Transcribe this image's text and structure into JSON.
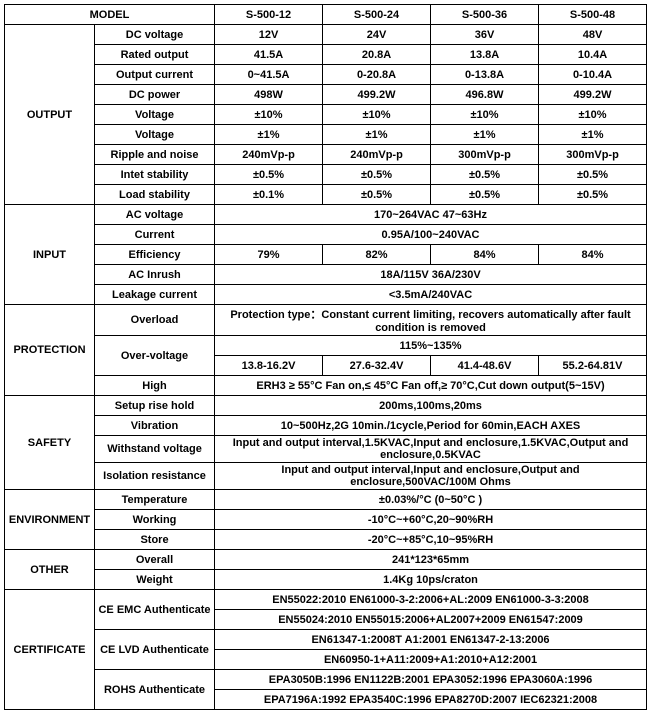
{
  "header": {
    "model_label": "MODEL",
    "models": [
      "S-500-12",
      "S-500-24",
      "S-500-36",
      "S-500-48"
    ]
  },
  "sections": {
    "output": {
      "title": "OUTPUT",
      "rows": [
        {
          "label": "DC  voltage",
          "vals": [
            "12V",
            "24V",
            "36V",
            "48V"
          ]
        },
        {
          "label": "Rated output",
          "vals": [
            "41.5A",
            "20.8A",
            "13.8A",
            "10.4A"
          ]
        },
        {
          "label": "Output current",
          "vals": [
            "0~41.5A",
            "0-20.8A",
            "0-13.8A",
            "0-10.4A"
          ]
        },
        {
          "label": "DC power",
          "vals": [
            "498W",
            "499.2W",
            "496.8W",
            "499.2W"
          ]
        },
        {
          "label": "Voltage",
          "vals": [
            "±10%",
            "±10%",
            "±10%",
            "±10%"
          ]
        },
        {
          "label": "Voltage",
          "vals": [
            "±1%",
            "±1%",
            "±1%",
            "±1%"
          ]
        },
        {
          "label": "Ripple and noise",
          "vals": [
            "240mVp-p",
            "240mVp-p",
            "300mVp-p",
            "300mVp-p"
          ]
        },
        {
          "label": "Intet stability",
          "vals": [
            "±0.5%",
            "±0.5%",
            "±0.5%",
            "±0.5%"
          ]
        },
        {
          "label": "Load stability",
          "vals": [
            "±0.1%",
            "±0.5%",
            "±0.5%",
            "±0.5%"
          ]
        }
      ]
    },
    "input": {
      "title": "INPUT",
      "rows": [
        {
          "label": "AC voltage",
          "span": "170~264VAC 47~63Hz"
        },
        {
          "label": "Current",
          "span": "0.95A/100~240VAC"
        },
        {
          "label": "Efficiency",
          "vals": [
            "79%",
            "82%",
            "84%",
            "84%"
          ]
        },
        {
          "label": "AC Inrush",
          "span": "18A/115V 36A/230V"
        },
        {
          "label": "Leakage current",
          "span": "<3.5mA/240VAC"
        }
      ]
    },
    "protection": {
      "title": "PROTECTION",
      "overload_label": "Overload",
      "overload_text": "Protection type：Constant current limiting, recovers automatically after fault condition is removed",
      "overvoltage_label": "Over-voltage",
      "overvoltage_span": "115%~135%",
      "overvoltage_vals": [
        "13.8-16.2V",
        "27.6-32.4V",
        "41.4-48.6V",
        "55.2-64.81V"
      ],
      "high_label": "High",
      "high_span": "ERH3 ≥ 55°C Fan on,≤ 45°C Fan off,≥ 70°C,Cut down output(5~15V)"
    },
    "safety": {
      "title": "SAFETY",
      "rows": [
        {
          "label": "Setup rise hold",
          "span": "200ms,100ms,20ms"
        },
        {
          "label": "Vibration",
          "span": "10~500Hz,2G 10min./1cycle,Period for 60min,EACH AXES"
        },
        {
          "label": "Withstand voltage",
          "span": "Input and output interval,1.5KVAC,Input and enclosure,1.5KVAC,Output and enclosure,0.5KVAC"
        },
        {
          "label": "Isolation resistance",
          "span": "Input and output interval,Input and enclosure,Output and enclosure,500VAC/100M Ohms"
        }
      ]
    },
    "environment": {
      "title": "ENVIRONMENT",
      "rows": [
        {
          "label": "Temperature",
          "span": "±0.03%/°C (0~50°C )"
        },
        {
          "label": "Working",
          "span": "-10°C~+60°C,20~90%RH"
        },
        {
          "label": "Store",
          "span": "-20°C~+85°C,10~95%RH"
        }
      ]
    },
    "other": {
      "title": "OTHER",
      "rows": [
        {
          "label": "Overall",
          "span": "241*123*65mm"
        },
        {
          "label": "Weight",
          "span": "1.4Kg 10ps/craton"
        }
      ]
    },
    "certificate": {
      "title": "CERTIFICATE",
      "ce_emc_label": "CE EMC Authenticate",
      "ce_emc_1": "EN55022:2010 EN61000-3-2:2006+AL:2009 EN61000-3-3:2008",
      "ce_emc_2": "EN55024:2010 EN55015:2006+AL2007+2009 EN61547:2009",
      "ce_lvd_label": "CE LVD Authenticate",
      "ce_lvd_1": "EN61347-1:2008T A1:2001 EN61347-2-13:2006",
      "ce_lvd_2": "EN60950-1+A11:2009+A1:2010+A12:2001",
      "rohs_label": "ROHS Authenticate",
      "rohs_1": "EPA3050B:1996 EN1122B:2001 EPA3052:1996 EPA3060A:1996",
      "rohs_2": "EPA7196A:1992 EPA3540C:1996 EPA8270D:2007 IEC62321:2008"
    }
  }
}
